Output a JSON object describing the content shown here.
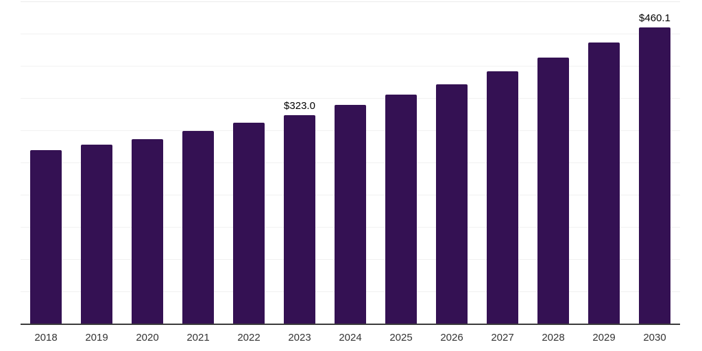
{
  "chart_data": {
    "type": "bar",
    "title": "",
    "xlabel": "",
    "ylabel": "",
    "categories": [
      "2018",
      "2019",
      "2020",
      "2021",
      "2022",
      "2023",
      "2024",
      "2025",
      "2026",
      "2027",
      "2028",
      "2029",
      "2030"
    ],
    "values": [
      269.0,
      277.2,
      286.5,
      298.9,
      312.0,
      323.0,
      339.7,
      355.0,
      371.6,
      391.2,
      412.4,
      436.3,
      460.1
    ],
    "data_labels": {
      "2023": "$323.0",
      "2030": "$460.1"
    },
    "ylim": [
      0,
      500
    ],
    "grid_step": 50,
    "grid": true,
    "legend": false,
    "y_tick_labels_visible": false
  },
  "style": {
    "background": "#ffffff",
    "bar_color": "#341153",
    "grid_color": "#f1f1f1",
    "axis_line_color": "#3b3b3b",
    "tick_label_color": "#333333",
    "annotation_color": "#000000"
  }
}
